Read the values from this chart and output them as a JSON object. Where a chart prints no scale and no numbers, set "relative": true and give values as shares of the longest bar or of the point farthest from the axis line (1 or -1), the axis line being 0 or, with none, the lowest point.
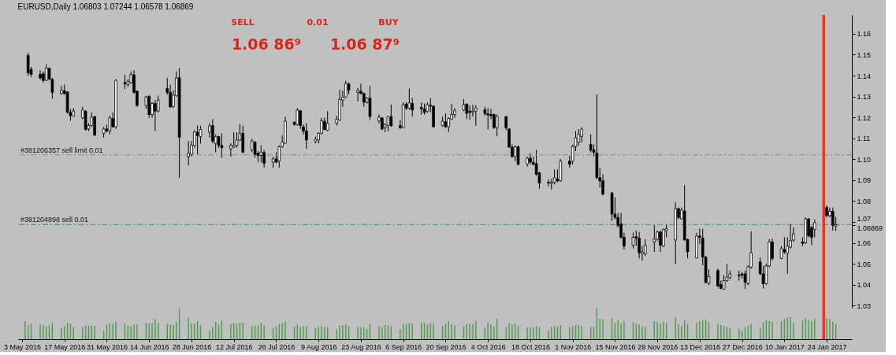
{
  "chart_data": [
    {
      "type": "candlestick",
      "title": "EURUSD,Daily 1.06803 1.07244 1.06578 1.06869",
      "x": [
        "2016-05-05",
        "2016-05-06",
        "2016-05-09",
        "2016-05-10",
        "2016-05-11",
        "2016-05-12",
        "2016-05-13",
        "2016-05-16",
        "2016-05-17",
        "2016-05-18",
        "2016-05-19",
        "2016-05-20",
        "2016-05-23",
        "2016-05-24",
        "2016-05-25",
        "2016-05-26",
        "2016-05-27",
        "2016-05-30",
        "2016-05-31",
        "2016-06-01",
        "2016-06-02",
        "2016-06-03",
        "2016-06-06",
        "2016-06-07",
        "2016-06-08",
        "2016-06-09",
        "2016-06-10",
        "2016-06-13",
        "2016-06-14",
        "2016-06-15",
        "2016-06-16",
        "2016-06-17",
        "2016-06-20",
        "2016-06-21",
        "2016-06-22",
        "2016-06-23",
        "2016-06-24",
        "2016-06-27",
        "2016-06-28",
        "2016-06-29",
        "2016-06-30",
        "2016-07-01",
        "2016-07-04",
        "2016-07-05",
        "2016-07-06",
        "2016-07-07",
        "2016-07-08",
        "2016-07-11",
        "2016-07-12",
        "2016-07-13",
        "2016-07-14",
        "2016-07-15",
        "2016-07-18",
        "2016-07-19",
        "2016-07-20",
        "2016-07-21",
        "2016-07-22",
        "2016-07-25",
        "2016-07-26",
        "2016-07-27",
        "2016-07-28",
        "2016-07-29",
        "2016-08-01",
        "2016-08-02",
        "2016-08-03",
        "2016-08-04",
        "2016-08-05",
        "2016-08-08",
        "2016-08-09",
        "2016-08-10",
        "2016-08-11",
        "2016-08-12",
        "2016-08-15",
        "2016-08-16",
        "2016-08-17",
        "2016-08-18",
        "2016-08-19",
        "2016-08-22",
        "2016-08-23",
        "2016-08-24",
        "2016-08-25",
        "2016-08-26",
        "2016-08-29",
        "2016-08-30",
        "2016-08-31",
        "2016-09-01",
        "2016-09-02",
        "2016-09-05",
        "2016-09-06",
        "2016-09-07",
        "2016-09-08",
        "2016-09-09",
        "2016-09-12",
        "2016-09-13",
        "2016-09-14",
        "2016-09-15",
        "2016-09-16",
        "2016-09-19",
        "2016-09-20",
        "2016-09-21",
        "2016-09-22",
        "2016-09-23",
        "2016-09-26",
        "2016-09-27",
        "2016-09-28",
        "2016-09-29",
        "2016-09-30",
        "2016-10-03",
        "2016-10-04",
        "2016-10-05",
        "2016-10-06",
        "2016-10-07",
        "2016-10-10",
        "2016-10-11",
        "2016-10-12",
        "2016-10-13",
        "2016-10-14",
        "2016-10-17",
        "2016-10-18",
        "2016-10-19",
        "2016-10-20",
        "2016-10-21",
        "2016-10-24",
        "2016-10-25",
        "2016-10-26",
        "2016-10-27",
        "2016-10-28",
        "2016-10-31",
        "2016-11-01",
        "2016-11-02",
        "2016-11-03",
        "2016-11-04",
        "2016-11-07",
        "2016-11-08",
        "2016-11-09",
        "2016-11-10",
        "2016-11-11",
        "2016-11-14",
        "2016-11-15",
        "2016-11-16",
        "2016-11-17",
        "2016-11-18",
        "2016-11-21",
        "2016-11-22",
        "2016-11-23",
        "2016-11-24",
        "2016-11-25",
        "2016-11-28",
        "2016-11-29",
        "2016-11-30",
        "2016-12-01",
        "2016-12-02",
        "2016-12-05",
        "2016-12-06",
        "2016-12-07",
        "2016-12-08",
        "2016-12-09",
        "2016-12-12",
        "2016-12-13",
        "2016-12-14",
        "2016-12-15",
        "2016-12-16",
        "2016-12-19",
        "2016-12-20",
        "2016-12-21",
        "2016-12-22",
        "2016-12-23",
        "2016-12-26",
        "2016-12-27",
        "2016-12-28",
        "2016-12-29",
        "2016-12-30",
        "2017-01-02",
        "2017-01-03",
        "2017-01-04",
        "2017-01-05",
        "2017-01-06",
        "2017-01-09",
        "2017-01-10",
        "2017-01-11",
        "2017-01-12",
        "2017-01-13",
        "2017-01-16",
        "2017-01-17",
        "2017-01-18",
        "2017-01-19",
        "2017-01-20",
        "2017-01-24",
        "2017-01-25",
        "2017-01-26",
        "2017-01-27"
      ],
      "ohlc": [
        [
          1.1497,
          1.1509,
          1.1399,
          1.1413
        ],
        [
          1.143,
          1.1442,
          1.1393,
          1.1406
        ],
        [
          1.1406,
          1.1426,
          1.1381,
          1.1389
        ],
        [
          1.1409,
          1.142,
          1.1367,
          1.1377
        ],
        [
          1.1377,
          1.1455,
          1.1375,
          1.1436
        ],
        [
          1.1436,
          1.1438,
          1.1377,
          1.1383
        ],
        [
          1.1383,
          1.1389,
          1.129,
          1.132
        ],
        [
          1.1314,
          1.1351,
          1.1309,
          1.133
        ],
        [
          1.1328,
          1.1357,
          1.1309,
          1.1314
        ],
        [
          1.1322,
          1.1325,
          1.1219,
          1.1224
        ],
        [
          1.1224,
          1.124,
          1.1184,
          1.1208
        ],
        [
          1.1205,
          1.1245,
          1.1204,
          1.123
        ],
        [
          1.1198,
          1.1251,
          1.1192,
          1.1235
        ],
        [
          1.123,
          1.1235,
          1.1138,
          1.1142
        ],
        [
          1.1145,
          1.1172,
          1.1135,
          1.1161
        ],
        [
          1.1161,
          1.1224,
          1.1155,
          1.1201
        ],
        [
          1.1204,
          1.1208,
          1.1113,
          1.1115
        ],
        [
          1.1124,
          1.1155,
          1.1103,
          1.1145
        ],
        [
          1.1145,
          1.1166,
          1.1129,
          1.1135
        ],
        [
          1.1135,
          1.1208,
          1.1119,
          1.1198
        ],
        [
          1.1195,
          1.1224,
          1.1152,
          1.1155
        ],
        [
          1.1155,
          1.1383,
          1.1145,
          1.1377
        ],
        [
          1.1367,
          1.1404,
          1.1336,
          1.136
        ],
        [
          1.1357,
          1.1383,
          1.1346,
          1.1373
        ],
        [
          1.1367,
          1.142,
          1.1362,
          1.1406
        ],
        [
          1.1404,
          1.1426,
          1.1314,
          1.132
        ],
        [
          1.1325,
          1.133,
          1.1251,
          1.1257
        ],
        [
          1.1257,
          1.1304,
          1.1241,
          1.1298
        ],
        [
          1.13,
          1.1307,
          1.1198,
          1.1214
        ],
        [
          1.1214,
          1.1272,
          1.1198,
          1.1267
        ],
        [
          1.1267,
          1.1283,
          1.1135,
          1.123
        ],
        [
          1.123,
          1.1304,
          1.1224,
          1.1283
        ],
        [
          1.1338,
          1.1389,
          1.1309,
          1.132
        ],
        [
          1.132,
          1.1357,
          1.1245,
          1.1251
        ],
        [
          1.1251,
          1.133,
          1.1245,
          1.1307
        ],
        [
          1.1304,
          1.142,
          1.13,
          1.1389
        ],
        [
          1.139,
          1.1436,
          1.0912,
          1.1105
        ],
        [
          1.1013,
          1.1087,
          1.097,
          1.1029
        ],
        [
          1.1023,
          1.1087,
          1.1013,
          1.1068
        ],
        [
          1.1066,
          1.1139,
          1.1055,
          1.1131
        ],
        [
          1.1129,
          1.1161,
          1.1023,
          1.1113
        ],
        [
          1.1108,
          1.1161,
          1.1076,
          1.1142
        ],
        [
          1.1129,
          1.1172,
          1.1103,
          1.1159
        ],
        [
          1.1161,
          1.1192,
          1.1076,
          1.1087
        ],
        [
          1.1076,
          1.1119,
          1.1034,
          1.1108
        ],
        [
          1.1108,
          1.1113,
          1.1055,
          1.1066
        ],
        [
          1.1066,
          1.1124,
          1.1007,
          1.1055
        ],
        [
          1.105,
          1.1076,
          1.1013,
          1.1066
        ],
        [
          1.1058,
          1.1129,
          1.1055,
          1.1066
        ],
        [
          1.1066,
          1.1129,
          1.1055,
          1.1092
        ],
        [
          1.1092,
          1.1169,
          1.1087,
          1.1124
        ],
        [
          1.1124,
          1.1161,
          1.1029,
          1.1034
        ],
        [
          1.1045,
          1.1098,
          1.1034,
          1.1087
        ],
        [
          1.1082,
          1.1087,
          1.1007,
          1.1023
        ],
        [
          1.1029,
          1.1039,
          1.0986,
          1.1018
        ],
        [
          1.1018,
          1.1066,
          1.0986,
          1.1034
        ],
        [
          1.1032,
          1.1045,
          1.096,
          1.0981
        ],
        [
          1.0986,
          1.1013,
          1.096,
          1.1002
        ],
        [
          1.1002,
          1.1034,
          1.0981,
          1.0986
        ],
        [
          1.0991,
          1.1066,
          1.096,
          1.106
        ],
        [
          1.106,
          1.1113,
          1.1055,
          1.1082
        ],
        [
          1.1076,
          1.1204,
          1.1074,
          1.1182
        ],
        [
          1.1177,
          1.1182,
          1.1161,
          1.1166
        ],
        [
          1.1166,
          1.1245,
          1.1161,
          1.1235
        ],
        [
          1.1232,
          1.1235,
          1.1145,
          1.1161
        ],
        [
          1.1155,
          1.1166,
          1.1119,
          1.1135
        ],
        [
          1.1135,
          1.1172,
          1.105,
          1.1092
        ],
        [
          1.1084,
          1.1108,
          1.1076,
          1.1095
        ],
        [
          1.1092,
          1.1129,
          1.1076,
          1.1124
        ],
        [
          1.1124,
          1.1198,
          1.1119,
          1.1184
        ],
        [
          1.1182,
          1.1198,
          1.1139,
          1.1142
        ],
        [
          1.1139,
          1.123,
          1.1135,
          1.1172
        ],
        [
          1.1172,
          1.1208,
          1.1161,
          1.1192
        ],
        [
          1.1188,
          1.1332,
          1.1184,
          1.1285
        ],
        [
          1.1283,
          1.1328,
          1.1251,
          1.1297
        ],
        [
          1.1298,
          1.1375,
          1.1293,
          1.1362
        ],
        [
          1.136,
          1.1367,
          1.1311,
          1.133
        ],
        [
          1.132,
          1.1341,
          1.1277,
          1.133
        ],
        [
          1.1325,
          1.1362,
          1.1311,
          1.1314
        ],
        [
          1.1314,
          1.132,
          1.1251,
          1.1272
        ],
        [
          1.1272,
          1.1298,
          1.1267,
          1.1293
        ],
        [
          1.1293,
          1.1351,
          1.1188,
          1.1204
        ],
        [
          1.1184,
          1.1214,
          1.1172,
          1.1201
        ],
        [
          1.1198,
          1.1201,
          1.1139,
          1.1145
        ],
        [
          1.1151,
          1.1172,
          1.1129,
          1.1166
        ],
        [
          1.1161,
          1.1208,
          1.1135,
          1.1205
        ],
        [
          1.1204,
          1.1261,
          1.1155,
          1.1161
        ],
        [
          1.1161,
          1.1188,
          1.1145,
          1.1151
        ],
        [
          1.1151,
          1.1272,
          1.1148,
          1.1261
        ],
        [
          1.1264,
          1.1272,
          1.1235,
          1.1245
        ],
        [
          1.1244,
          1.1338,
          1.1237,
          1.1269
        ],
        [
          1.1267,
          1.1293,
          1.1204,
          1.1235
        ],
        [
          1.1248,
          1.1272,
          1.1214,
          1.1241
        ],
        [
          1.1241,
          1.1267,
          1.1214,
          1.1224
        ],
        [
          1.123,
          1.1272,
          1.1224,
          1.1261
        ],
        [
          1.1258,
          1.1293,
          1.1224,
          1.1254
        ],
        [
          1.1254,
          1.1258,
          1.1152,
          1.1155
        ],
        [
          1.1161,
          1.1204,
          1.1155,
          1.1182
        ],
        [
          1.1179,
          1.1219,
          1.1151,
          1.1155
        ],
        [
          1.1155,
          1.1201,
          1.1129,
          1.1195
        ],
        [
          1.1192,
          1.1264,
          1.1188,
          1.1214
        ],
        [
          1.1214,
          1.1245,
          1.1198,
          1.1232
        ],
        [
          1.1235,
          1.1288,
          1.123,
          1.1261
        ],
        [
          1.1264,
          1.1267,
          1.1192,
          1.1219
        ],
        [
          1.123,
          1.1257,
          1.1188,
          1.1224
        ],
        [
          1.1224,
          1.1261,
          1.1204,
          1.123
        ],
        [
          1.123,
          1.1258,
          1.1161,
          1.1245
        ],
        [
          1.1237,
          1.1251,
          1.1208,
          1.1219
        ],
        [
          1.1217,
          1.1245,
          1.1142,
          1.1212
        ],
        [
          1.1214,
          1.1241,
          1.1192,
          1.1208
        ],
        [
          1.1214,
          1.1219,
          1.1145,
          1.1151
        ],
        [
          1.1151,
          1.1214,
          1.111,
          1.1205
        ],
        [
          1.1204,
          1.1208,
          1.1139,
          1.1151
        ],
        [
          1.1145,
          1.1148,
          1.1055,
          1.1058
        ],
        [
          1.1058,
          1.1071,
          1.1007,
          1.1013
        ],
        [
          1.1013,
          1.1066,
          1.0991,
          1.106
        ],
        [
          1.106,
          1.1066,
          1.097,
          1.0976
        ],
        [
          1.0978,
          1.1013,
          1.0965,
          1.1005
        ],
        [
          1.1005,
          1.1029,
          1.0976,
          1.0986
        ],
        [
          1.0986,
          1.1013,
          1.097,
          1.0976
        ],
        [
          1.0979,
          1.1045,
          1.0922,
          1.0928
        ],
        [
          1.0935,
          1.0941,
          1.0859,
          1.0887
        ],
        [
          1.089,
          1.0903,
          1.0871,
          1.0887
        ],
        [
          1.0884,
          1.0906,
          1.0855,
          1.089
        ],
        [
          1.089,
          1.0951,
          1.0881,
          1.0912
        ],
        [
          1.0906,
          1.0951,
          1.089,
          1.0897
        ],
        [
          1.0897,
          1.1001,
          1.0893,
          1.0991
        ],
        [
          1.0991,
          1.1017,
          1.096,
          1.0976
        ],
        [
          1.0991,
          1.1071,
          1.0976,
          1.1061
        ],
        [
          1.1061,
          1.1135,
          1.1039,
          1.1103
        ],
        [
          1.1081,
          1.1144,
          1.1065,
          1.1119
        ],
        [
          1.1109,
          1.1153,
          1.1081,
          1.1144
        ],
        [
          1.1071,
          1.1119,
          1.1033,
          1.1043
        ],
        [
          1.1045,
          1.1071,
          1.1014,
          1.1033
        ],
        [
          1.103,
          1.131,
          1.0906,
          1.0912
        ],
        [
          1.0912,
          1.096,
          1.0865,
          1.0897
        ],
        [
          1.0897,
          1.0928,
          1.0827,
          1.0833
        ],
        [
          1.0839,
          1.0843,
          1.0706,
          1.0738
        ],
        [
          1.0738,
          1.0818,
          1.0712,
          1.0722
        ],
        [
          1.0722,
          1.0744,
          1.0674,
          1.0684
        ],
        [
          1.069,
          1.0744,
          1.062,
          1.0627
        ],
        [
          1.0627,
          1.0649,
          1.0569,
          1.0585
        ],
        [
          1.0589,
          1.0649,
          1.0573,
          1.0627
        ],
        [
          1.063,
          1.0659,
          1.0586,
          1.0623
        ],
        [
          1.0623,
          1.0652,
          1.0526,
          1.0553
        ],
        [
          1.0548,
          1.0585,
          1.0515,
          1.0557
        ],
        [
          1.0548,
          1.0618,
          1.0538,
          1.0589
        ],
        [
          1.0605,
          1.0684,
          1.0557,
          1.0618
        ],
        [
          1.0618,
          1.0659,
          1.0611,
          1.0652
        ],
        [
          1.0652,
          1.0659,
          1.0557,
          1.0589
        ],
        [
          1.0585,
          1.0668,
          1.058,
          1.0665
        ],
        [
          1.0659,
          1.069,
          1.0627,
          1.0668
        ],
        [
          1.0614,
          1.0795,
          1.05,
          1.0764
        ],
        [
          1.0764,
          1.0769,
          1.0712,
          1.0722
        ],
        [
          1.0715,
          1.0769,
          1.0712,
          1.0757
        ],
        [
          1.0753,
          1.0877,
          1.0611,
          1.0614
        ],
        [
          1.0617,
          1.062,
          1.0526,
          1.0557
        ],
        [
          1.0528,
          1.0649,
          1.0526,
          1.0633
        ],
        [
          1.0633,
          1.0668,
          1.0595,
          1.0627
        ],
        [
          1.0623,
          1.0668,
          1.0493,
          1.0532
        ],
        [
          1.0532,
          1.0538,
          1.0407,
          1.0411
        ],
        [
          1.0407,
          1.0474,
          1.0398,
          1.0439
        ],
        [
          1.0468,
          1.0477,
          1.0389,
          1.0394
        ],
        [
          1.0401,
          1.042,
          1.0379,
          1.0382
        ],
        [
          1.0379,
          1.0446,
          1.0379,
          1.042
        ],
        [
          1.042,
          1.05,
          1.0414,
          1.0436
        ],
        [
          1.0433,
          1.0468,
          1.0427,
          1.0452
        ],
        [
          1.0448,
          1.0468,
          1.042,
          1.0443
        ],
        [
          1.0452,
          1.0461,
          1.043,
          1.0446
        ],
        [
          1.0452,
          1.0468,
          1.0379,
          1.0411
        ],
        [
          1.0405,
          1.0493,
          1.0398,
          1.0487
        ],
        [
          1.0484,
          1.0655,
          1.0477,
          1.0553
        ],
        [
          1.0509,
          1.0531,
          1.0446,
          1.0452
        ],
        [
          1.0452,
          1.049,
          1.0382,
          1.0405
        ],
        [
          1.0405,
          1.05,
          1.0398,
          1.049
        ],
        [
          1.049,
          1.0618,
          1.0484,
          1.0605
        ],
        [
          1.0605,
          1.062,
          1.0515,
          1.0526
        ],
        [
          1.0526,
          1.0585,
          1.0522,
          1.0573
        ],
        [
          1.0569,
          1.0627,
          1.0548,
          1.0557
        ],
        [
          1.0551,
          1.0627,
          1.0452,
          1.0585
        ],
        [
          1.058,
          1.069,
          1.0573,
          1.0611
        ],
        [
          1.0614,
          1.0674,
          1.0605,
          1.0643
        ],
        [
          1.0605,
          1.0627,
          1.0585,
          1.0598
        ],
        [
          1.0601,
          1.0722,
          1.0595,
          1.0715
        ],
        [
          1.0715,
          1.0718,
          1.0627,
          1.0633
        ],
        [
          1.0674,
          1.0681,
          1.0589,
          1.0627
        ],
        [
          1.0665,
          1.0712,
          1.0627,
          1.0697
        ],
        [
          1.0769,
          1.0779,
          1.0722,
          1.0731
        ],
        [
          1.0731,
          1.0769,
          1.0722,
          1.0751
        ],
        [
          1.0751,
          1.0769,
          1.0659,
          1.0684
        ],
        [
          1.06803,
          1.07244,
          1.06578,
          1.06869
        ]
      ],
      "colors": [
        "#000000",
        "#000000",
        "#000000",
        "#000000",
        "#ffffff",
        "#000000",
        "#000000",
        "#ffffff",
        "#000000",
        "#000000",
        "#000000",
        "#ffffff",
        "#ffffff",
        "#000000",
        "#ffffff",
        "#ffffff",
        "#000000",
        "#ffffff",
        "#000000",
        "#ffffff",
        "#000000",
        "#ffffff",
        "#000000",
        "#ffffff",
        "#ffffff",
        "#000000",
        "#000000",
        "#ffffff",
        "#000000",
        "#ffffff",
        "#000000",
        "#ffffff",
        "#000000",
        "#000000",
        "#ffffff",
        "#ffffff",
        "#000000",
        "#ffffff",
        "#ffffff",
        "#ffffff",
        "#000000",
        "#ffffff",
        "#ffffff",
        "#000000",
        "#ffffff",
        "#000000",
        "#000000",
        "#ffffff",
        "#ffffff",
        "#ffffff",
        "#ffffff",
        "#000000",
        "#ffffff",
        "#000000",
        "#000000",
        "#ffffff",
        "#000000",
        "#ffffff",
        "#000000",
        "#ffffff",
        "#ffffff",
        "#ffffff",
        "#000000",
        "#ffffff",
        "#000000",
        "#000000",
        "#000000",
        "#ffffff",
        "#ffffff",
        "#ffffff",
        "#000000",
        "#ffffff",
        "#ffffff",
        "#ffffff",
        "#ffffff",
        "#ffffff",
        "#000000",
        "#ffffff",
        "#000000",
        "#000000",
        "#ffffff",
        "#000000",
        "#ffffff",
        "#000000",
        "#ffffff",
        "#ffffff",
        "#000000",
        "#000000",
        "#ffffff",
        "#000000",
        "#ffffff",
        "#000000",
        "#000000",
        "#000000",
        "#ffffff",
        "#000000",
        "#000000",
        "#ffffff",
        "#000000",
        "#ffffff",
        "#ffffff",
        "#ffffff",
        "#ffffff",
        "#000000",
        "#000000",
        "#ffffff",
        "#ffffff",
        "#000000",
        "#000000",
        "#000000",
        "#000000",
        "#ffffff",
        "#000000",
        "#000000",
        "#000000",
        "#ffffff",
        "#000000",
        "#ffffff",
        "#000000",
        "#000000",
        "#000000",
        "#000000",
        "#000000",
        "#ffffff",
        "#ffffff",
        "#000000",
        "#ffffff",
        "#000000",
        "#ffffff",
        "#ffffff",
        "#ffffff",
        "#ffffff",
        "#000000",
        "#000000",
        "#000000",
        "#000000",
        "#000000",
        "#000000",
        "#000000",
        "#000000",
        "#000000",
        "#000000",
        "#ffffff",
        "#000000",
        "#000000",
        "#ffffff",
        "#ffffff",
        "#ffffff",
        "#ffffff",
        "#000000",
        "#ffffff",
        "#ffffff",
        "#ffffff",
        "#000000",
        "#ffffff",
        "#000000",
        "#000000",
        "#ffffff",
        "#000000",
        "#000000",
        "#000000",
        "#ffffff",
        "#000000",
        "#000000",
        "#ffffff",
        "#ffffff",
        "#ffffff",
        "#000000",
        "#000000",
        "#000000",
        "#ffffff",
        "#ffffff",
        "#000000",
        "#000000",
        "#ffffff",
        "#ffffff",
        "#000000",
        "#ffffff",
        "#000000",
        "#ffffff",
        "#ffffff",
        "#ffffff",
        "#000000",
        "#ffffff",
        "#000000",
        "#000000",
        "#ffffff",
        "#000000",
        "#ffffff",
        "#000000",
        "#ffffff"
      ],
      "color": "#000000",
      "xlim": [
        "2016-05-03",
        "2017-01-31"
      ],
      "ylim": [
        1.029,
        1.169
      ],
      "yticks": [
        1.03,
        1.04,
        1.05,
        1.06,
        {
          "value": 1.06869,
          "label": "1.06869"
        },
        1.07,
        1.08,
        1.09,
        {
          "value": 1.1,
          "label": "1.10"
        },
        1.11,
        1.12,
        1.13,
        1.14,
        1.15,
        1.16
      ],
      "tick_labels": "y",
      "ref_lines": [
        {
          "axis": "y",
          "value": 1.1021,
          "label": "#381206357 sell limit 0.01",
          "color": "#8a8a8a",
          "line_style": "dashed"
        },
        {
          "axis": "y",
          "value": 1.0688,
          "label": "#381204898 sell 0.01",
          "color": "#3f8a5f",
          "line_style": "dashed"
        },
        {
          "axis": "x",
          "value": "2017-01-23",
          "color": "#ff2b1b"
        }
      ],
      "annotations": [
        "SELL",
        "0.01",
        "BUY",
        "1.06 86⁹",
        "1.06 87⁹"
      ]
    },
    {
      "type": "bar",
      "relative": true,
      "x": [
        "2016-05-04",
        "2016-05-05",
        "2016-05-06",
        "2016-05-09",
        "2016-05-10",
        "2016-05-11",
        "2016-05-12",
        "2016-05-13",
        "2016-05-16",
        "2016-05-17",
        "2016-05-18",
        "2016-05-19",
        "2016-05-20",
        "2016-05-23",
        "2016-05-24",
        "2016-05-25",
        "2016-05-26",
        "2016-05-27",
        "2016-05-30",
        "2016-05-31",
        "2016-06-01",
        "2016-06-02",
        "2016-06-03",
        "2016-06-06",
        "2016-06-07",
        "2016-06-08",
        "2016-06-09",
        "2016-06-10",
        "2016-06-13",
        "2016-06-14",
        "2016-06-15",
        "2016-06-16",
        "2016-06-17",
        "2016-06-20",
        "2016-06-21",
        "2016-06-22",
        "2016-06-23",
        "2016-06-24",
        "2016-06-27",
        "2016-06-28",
        "2016-06-29",
        "2016-06-30",
        "2016-07-01",
        "2016-07-04",
        "2016-07-05",
        "2016-07-06",
        "2016-07-07",
        "2016-07-08",
        "2016-07-11",
        "2016-07-12",
        "2016-07-13",
        "2016-07-14",
        "2016-07-15",
        "2016-07-18",
        "2016-07-19",
        "2016-07-20",
        "2016-07-21",
        "2016-07-22",
        "2016-07-25",
        "2016-07-26",
        "2016-07-27",
        "2016-07-28",
        "2016-07-29",
        "2016-08-01",
        "2016-08-02",
        "2016-08-03",
        "2016-08-04",
        "2016-08-05",
        "2016-08-08",
        "2016-08-09",
        "2016-08-10",
        "2016-08-11",
        "2016-08-12",
        "2016-08-15",
        "2016-08-16",
        "2016-08-17",
        "2016-08-18",
        "2016-08-19",
        "2016-08-22",
        "2016-08-23",
        "2016-08-24",
        "2016-08-25",
        "2016-08-26",
        "2016-08-29",
        "2016-08-30",
        "2016-08-31",
        "2016-09-01",
        "2016-09-02",
        "2016-09-05",
        "2016-09-06",
        "2016-09-07",
        "2016-09-08",
        "2016-09-09",
        "2016-09-12",
        "2016-09-13",
        "2016-09-14",
        "2016-09-15",
        "2016-09-16",
        "2016-09-19",
        "2016-09-20",
        "2016-09-21",
        "2016-09-22",
        "2016-09-23",
        "2016-09-26",
        "2016-09-27",
        "2016-09-28",
        "2016-09-29",
        "2016-09-30",
        "2016-10-03",
        "2016-10-04",
        "2016-10-05",
        "2016-10-06",
        "2016-10-07",
        "2016-10-10",
        "2016-10-11",
        "2016-10-12",
        "2016-10-13",
        "2016-10-14",
        "2016-10-17",
        "2016-10-18",
        "2016-10-19",
        "2016-10-20",
        "2016-10-21",
        "2016-10-24",
        "2016-10-25",
        "2016-10-26",
        "2016-10-27",
        "2016-10-28",
        "2016-10-31",
        "2016-11-01",
        "2016-11-02",
        "2016-11-03",
        "2016-11-04",
        "2016-11-07",
        "2016-11-08",
        "2016-11-09",
        "2016-11-10",
        "2016-11-11",
        "2016-11-14",
        "2016-11-15",
        "2016-11-16",
        "2016-11-17",
        "2016-11-18",
        "2016-11-21",
        "2016-11-22",
        "2016-11-23",
        "2016-11-24",
        "2016-11-25",
        "2016-11-28",
        "2016-11-29",
        "2016-11-30",
        "2016-12-01",
        "2016-12-02",
        "2016-12-05",
        "2016-12-06",
        "2016-12-07",
        "2016-12-08",
        "2016-12-09",
        "2016-12-12",
        "2016-12-13",
        "2016-12-14",
        "2016-12-15",
        "2016-12-16",
        "2016-12-19",
        "2016-12-20",
        "2016-12-21",
        "2016-12-22",
        "2016-12-23",
        "2016-12-26",
        "2016-12-27",
        "2016-12-28",
        "2016-12-29",
        "2016-12-30",
        "2017-01-02",
        "2017-01-03",
        "2017-01-04",
        "2017-01-05",
        "2017-01-06",
        "2017-01-09",
        "2017-01-10",
        "2017-01-11",
        "2017-01-12",
        "2017-01-13",
        "2017-01-16",
        "2017-01-17",
        "2017-01-18",
        "2017-01-19",
        "2017-01-20",
        "2017-01-24",
        "2017-01-25",
        "2017-01-26",
        "2017-01-27"
      ],
      "values": [
        0.58,
        0.45,
        0.5,
        0.47,
        0.45,
        0.41,
        0.44,
        0.52,
        0.36,
        0.42,
        0.52,
        0.5,
        0.39,
        0.39,
        0.44,
        0.44,
        0.44,
        0.42,
        0.27,
        0.45,
        0.5,
        0.5,
        0.56,
        0.5,
        0.44,
        0.42,
        0.47,
        0.47,
        0.52,
        0.5,
        0.5,
        0.65,
        0.52,
        0.5,
        0.47,
        0.45,
        0.55,
        0.97,
        0.68,
        0.5,
        0.5,
        0.58,
        0.45,
        0.27,
        0.39,
        0.55,
        0.47,
        0.59,
        0.47,
        0.52,
        0.5,
        0.53,
        0.53,
        0.42,
        0.42,
        0.44,
        0.52,
        0.45,
        0.36,
        0.42,
        0.48,
        0.5,
        0.56,
        0.41,
        0.47,
        0.39,
        0.42,
        0.42,
        0.35,
        0.39,
        0.41,
        0.38,
        0.38,
        0.32,
        0.45,
        0.44,
        0.47,
        0.42,
        0.39,
        0.39,
        0.39,
        0.33,
        0.48,
        0.42,
        0.39,
        0.45,
        0.45,
        0.42,
        0.32,
        0.48,
        0.48,
        0.52,
        0.5,
        0.53,
        0.52,
        0.47,
        0.5,
        0.5,
        0.42,
        0.48,
        0.58,
        0.48,
        0.44,
        0.42,
        0.48,
        0.48,
        0.48,
        0.59,
        0.38,
        0.53,
        0.47,
        0.41,
        0.65,
        0.39,
        0.5,
        0.47,
        0.5,
        0.44,
        0.38,
        0.38,
        0.39,
        0.42,
        0.38,
        0.28,
        0.39,
        0.41,
        0.41,
        0.45,
        0.38,
        0.42,
        0.45,
        0.45,
        0.42,
        0.39,
        0.39,
        1.0,
        0.65,
        0.62,
        0.67,
        0.53,
        0.61,
        0.5,
        0.58,
        0.55,
        0.5,
        0.47,
        0.42,
        0.39,
        0.58,
        0.55,
        0.5,
        0.55,
        0.53,
        0.7,
        0.47,
        0.42,
        0.61,
        0.48,
        0.53,
        0.58,
        0.61,
        0.62,
        0.55,
        0.48,
        0.45,
        0.42,
        0.39,
        0.35,
        0.33,
        0.27,
        0.39,
        0.42,
        0.48,
        0.36,
        0.53,
        0.61,
        0.58,
        0.55,
        0.58,
        0.64,
        0.7,
        0.7,
        0.52,
        0.59,
        0.67,
        0.61,
        0.58,
        0.65,
        0.67,
        0.64,
        0.56,
        0.48
      ],
      "color": "#4c9a4c",
      "xlim": [
        "2016-05-03",
        "2017-01-31"
      ],
      "xticks": [
        {
          "value": "2016-05-03",
          "label": "3 May 2016"
        },
        {
          "value": "2016-05-17",
          "label": "17 May 2016"
        },
        {
          "value": "2016-05-31",
          "label": "31 May 2016"
        },
        {
          "value": "2016-06-14",
          "label": "14 Jun 2016"
        },
        {
          "value": "2016-06-28",
          "label": "28 Jun 2016"
        },
        {
          "value": "2016-07-12",
          "label": "12 Jul 2016"
        },
        {
          "value": "2016-07-26",
          "label": "26 Jul 2016"
        },
        {
          "value": "2016-08-09",
          "label": "9 Aug 2016"
        },
        {
          "value": "2016-08-23",
          "label": "23 Aug 2016"
        },
        {
          "value": "2016-09-06",
          "label": "6 Sep 2016"
        },
        {
          "value": "2016-09-20",
          "label": "20 Sep 2016"
        },
        {
          "value": "2016-10-04",
          "label": "4 Oct 2016"
        },
        {
          "value": "2016-10-18",
          "label": "18 Oct 2016"
        },
        {
          "value": "2016-11-01",
          "label": "1 Nov 2016"
        },
        {
          "value": "2016-11-15",
          "label": "15 Nov 2016"
        },
        {
          "value": "2016-11-29",
          "label": "29 Nov 2016"
        },
        {
          "value": "2016-12-13",
          "label": "13 Dec 2016"
        },
        {
          "value": "2016-12-27",
          "label": "27 Dec 2016"
        },
        {
          "value": "2017-01-10",
          "label": "10 Jan 2017"
        },
        {
          "value": "2017-01-24",
          "label": "24 Jan 2017"
        }
      ],
      "tick_labels": "x",
      "ref_lines": [
        {
          "axis": "x",
          "value": "2017-01-23",
          "color": "#ff2b1b"
        }
      ]
    }
  ]
}
